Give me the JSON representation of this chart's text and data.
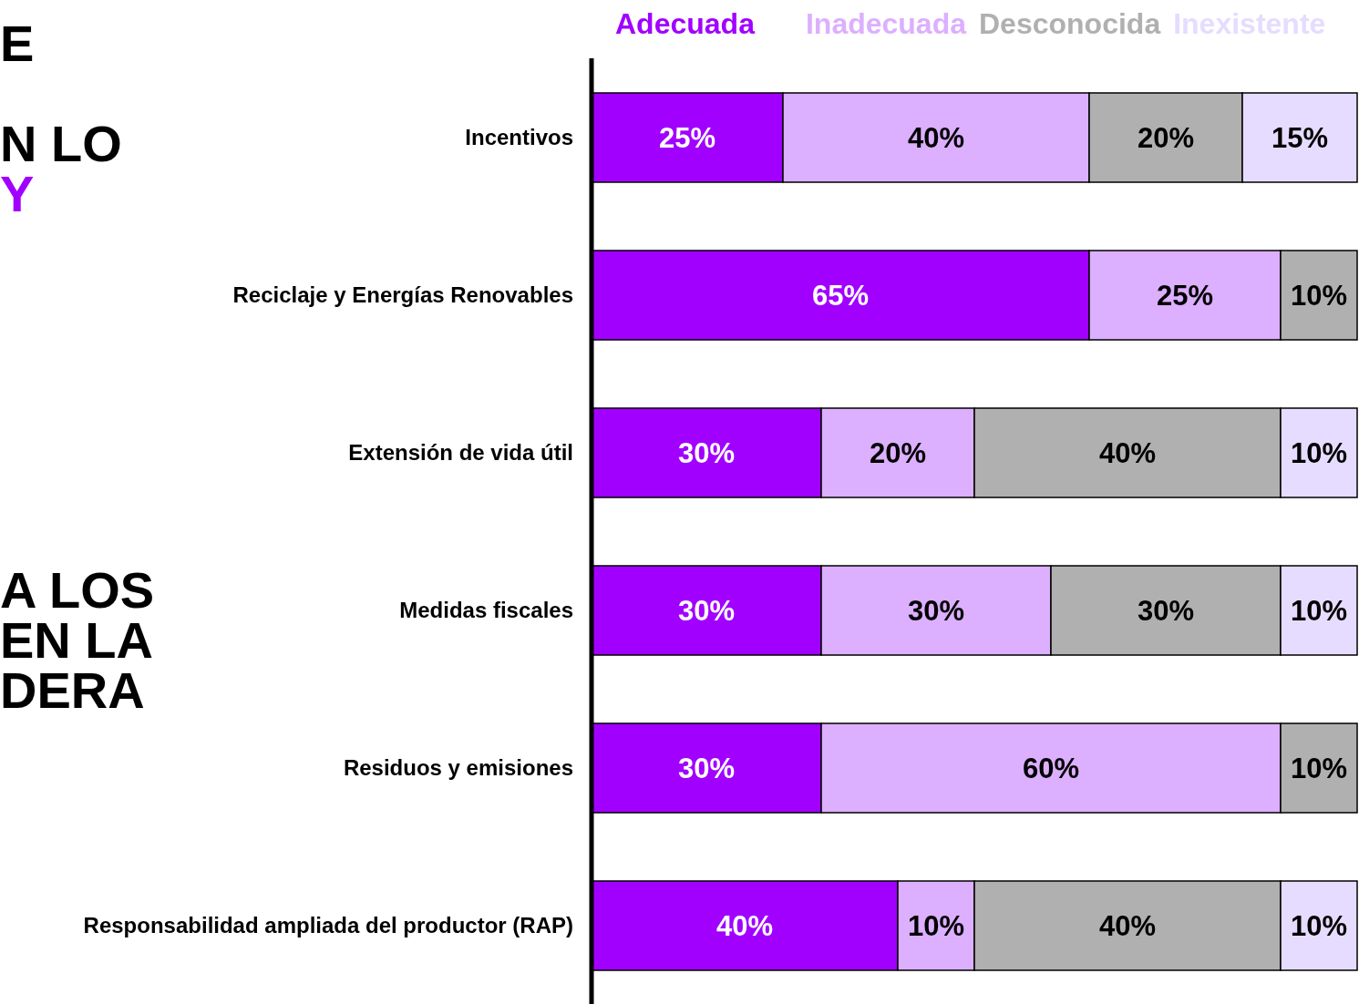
{
  "chart_data": {
    "type": "bar",
    "orientation": "horizontal",
    "stacked": true,
    "legend": "top",
    "data_labels": false,
    "categories": [
      "Incentivos",
      "Reciclaje y Energías Renovables",
      "Extensión de vida útil",
      "Medidas fiscales",
      "Residuos y emisiones",
      "Responsabilidad ampliada del productor (RAP)"
    ],
    "series": [
      {
        "name": "Adecuada",
        "color": "#a100ff",
        "values": [
          25,
          65,
          30,
          30,
          30,
          40
        ],
        "value_labels": [
          "25%",
          "65%",
          "30%",
          "30%",
          "30%",
          "40%"
        ]
      },
      {
        "name": "Inadecuada",
        "color": "#dcafff",
        "values": [
          40,
          25,
          20,
          30,
          60,
          10
        ],
        "value_labels": [
          "40%",
          "25%",
          "20%",
          "30%",
          "60%",
          "10%"
        ]
      },
      {
        "name": "Desconocida",
        "color": "#b0b0b0",
        "values": [
          20,
          10,
          40,
          30,
          10,
          40
        ],
        "value_labels": [
          "20%",
          "10%",
          "40%",
          "30%",
          "10%",
          "40%"
        ]
      },
      {
        "name": "Inexistente",
        "color": "#e6dcff",
        "values": [
          15,
          null,
          10,
          10,
          null,
          10
        ],
        "value_labels": [
          "15%",
          null,
          "10%",
          "10%",
          null,
          "10%"
        ]
      }
    ],
    "annotations": [
      "E",
      "N LO",
      "Y",
      "A LOS",
      "EN LA",
      "DERA"
    ]
  }
}
